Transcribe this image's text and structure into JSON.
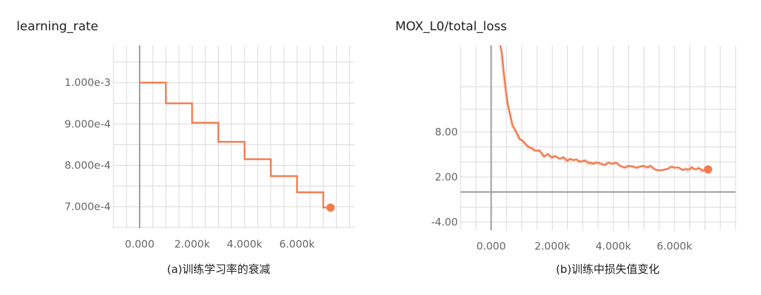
{
  "chart_data": [
    {
      "type": "line",
      "title": "learning_rate",
      "caption": "(a)训练学习率的衰减",
      "x_ticks": [
        "0.000",
        "2.000k",
        "4.000k",
        "6.000k"
      ],
      "x_tick_values": [
        0,
        2000,
        4000,
        6000
      ],
      "y_ticks": [
        "1.000e-3",
        "9.000e-4",
        "8.000e-4",
        "7.000e-4"
      ],
      "y_tick_values": [
        0.001,
        0.0009,
        0.0008,
        0.0007
      ],
      "xlim": [
        -1000,
        8200
      ],
      "ylim": [
        0.000648,
        0.00109
      ],
      "grid": true,
      "series": [
        {
          "color": "#f47a4e",
          "step": true,
          "x": [
            0,
            1000,
            2000,
            3000,
            4000,
            5000,
            6000,
            7000
          ],
          "y": [
            0.001,
            0.00095,
            0.000903,
            0.000857,
            0.000815,
            0.000774,
            0.000735,
            0.000698
          ]
        }
      ]
    },
    {
      "type": "line",
      "title": "MOX_L0/total_loss",
      "caption": "(b)训练中损失值变化",
      "x_ticks": [
        "0.000",
        "2.000k",
        "4.000k",
        "6.000k"
      ],
      "x_tick_values": [
        0,
        2000,
        4000,
        6000
      ],
      "y_ticks": [
        "8.00",
        "2.00",
        "-4.00"
      ],
      "y_tick_values": [
        8,
        2,
        -4
      ],
      "xlim": [
        -1000,
        8000
      ],
      "ylim": [
        -5.1,
        19.5
      ],
      "grid": true,
      "series": [
        {
          "color": "#f47a4e",
          "x": [
            300,
            400,
            500,
            600,
            700,
            800,
            1000,
            1200,
            1500,
            1800,
            2100,
            2500,
            3000,
            3500,
            4000,
            4500,
            5000,
            5500,
            6000,
            6500,
            7000,
            7100
          ],
          "y": [
            19.5,
            15.0,
            12.0,
            10.0,
            8.7,
            7.8,
            6.6,
            5.9,
            5.3,
            4.9,
            4.6,
            4.3,
            4.0,
            3.8,
            3.6,
            3.4,
            3.3,
            3.2,
            3.1,
            3.05,
            3.0,
            3.0
          ]
        }
      ]
    }
  ]
}
